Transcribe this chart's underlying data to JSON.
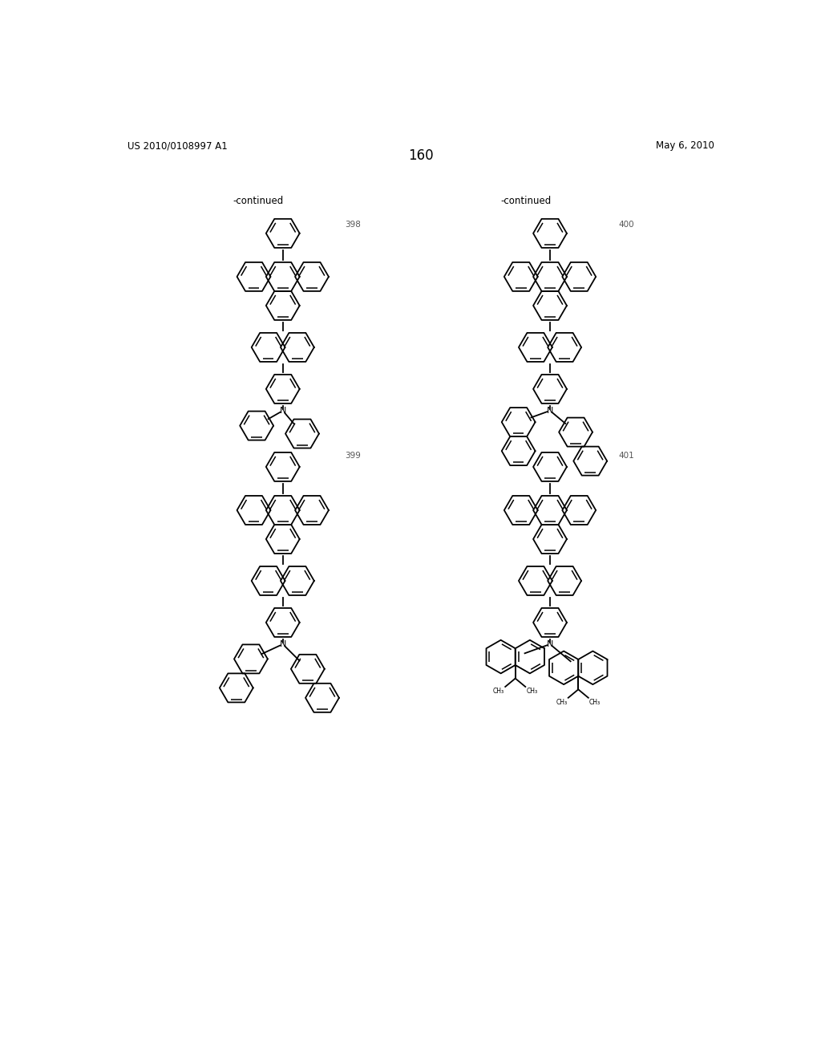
{
  "page_number": "160",
  "patent_left": "US 2010/0108997 A1",
  "patent_right": "May 6, 2010",
  "background_color": "#ffffff",
  "line_color": "#000000",
  "lw": 1.3,
  "r": 27
}
